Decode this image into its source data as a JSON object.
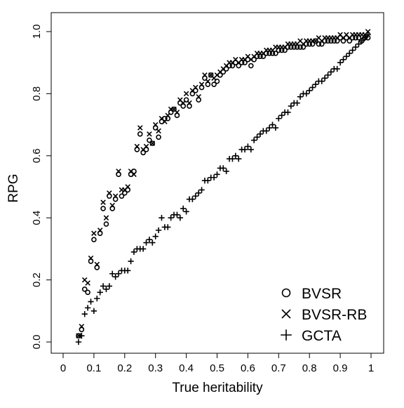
{
  "chart_data": {
    "type": "scatter",
    "title": "",
    "xlabel": "True heritability",
    "ylabel": "RPG",
    "xlim": [
      0,
      1
    ],
    "ylim": [
      0,
      1
    ],
    "x_ticks": [
      "0",
      "0.1",
      "0.2",
      "0.3",
      "0.4",
      "0.5",
      "0.6",
      "0.7",
      "0.8",
      "0.9",
      "1"
    ],
    "y_ticks": [
      "0.0",
      "0.2",
      "0.4",
      "0.6",
      "0.8",
      "1.0"
    ],
    "grid": false,
    "legend_position": "bottom-right",
    "series": [
      {
        "name": "BVSR",
        "marker": "circle",
        "x": [
          0.05,
          0.06,
          0.07,
          0.08,
          0.09,
          0.1,
          0.11,
          0.12,
          0.13,
          0.14,
          0.15,
          0.16,
          0.17,
          0.18,
          0.19,
          0.2,
          0.21,
          0.22,
          0.23,
          0.24,
          0.25,
          0.26,
          0.27,
          0.28,
          0.29,
          0.3,
          0.31,
          0.32,
          0.33,
          0.34,
          0.35,
          0.36,
          0.37,
          0.38,
          0.39,
          0.4,
          0.41,
          0.42,
          0.43,
          0.44,
          0.45,
          0.46,
          0.47,
          0.48,
          0.49,
          0.5,
          0.51,
          0.52,
          0.53,
          0.54,
          0.55,
          0.56,
          0.57,
          0.58,
          0.59,
          0.6,
          0.61,
          0.62,
          0.63,
          0.64,
          0.65,
          0.66,
          0.67,
          0.68,
          0.69,
          0.7,
          0.71,
          0.72,
          0.73,
          0.74,
          0.75,
          0.76,
          0.77,
          0.78,
          0.79,
          0.8,
          0.81,
          0.82,
          0.83,
          0.84,
          0.85,
          0.86,
          0.87,
          0.88,
          0.89,
          0.9,
          0.91,
          0.92,
          0.93,
          0.94,
          0.95,
          0.96,
          0.97,
          0.98,
          0.99
        ],
        "y": [
          0.02,
          0.04,
          0.17,
          0.16,
          0.26,
          0.33,
          0.24,
          0.35,
          0.43,
          0.38,
          0.47,
          0.43,
          0.46,
          0.54,
          0.47,
          0.48,
          0.49,
          0.54,
          0.55,
          0.62,
          0.67,
          0.61,
          0.62,
          0.65,
          0.64,
          0.69,
          0.66,
          0.71,
          0.72,
          0.72,
          0.74,
          0.75,
          0.73,
          0.77,
          0.76,
          0.78,
          0.76,
          0.8,
          0.81,
          0.78,
          0.82,
          0.85,
          0.83,
          0.86,
          0.83,
          0.84,
          0.86,
          0.87,
          0.88,
          0.89,
          0.89,
          0.9,
          0.89,
          0.9,
          0.9,
          0.91,
          0.89,
          0.91,
          0.92,
          0.92,
          0.92,
          0.93,
          0.93,
          0.93,
          0.93,
          0.94,
          0.94,
          0.94,
          0.95,
          0.95,
          0.95,
          0.95,
          0.95,
          0.95,
          0.96,
          0.96,
          0.96,
          0.97,
          0.96,
          0.96,
          0.97,
          0.97,
          0.97,
          0.97,
          0.97,
          0.98,
          0.97,
          0.98,
          0.97,
          0.98,
          0.98,
          0.98,
          0.97,
          0.98,
          0.98
        ]
      },
      {
        "name": "BVSR-RB",
        "marker": "x",
        "x": [
          0.05,
          0.06,
          0.07,
          0.08,
          0.09,
          0.1,
          0.11,
          0.12,
          0.13,
          0.14,
          0.15,
          0.16,
          0.17,
          0.18,
          0.19,
          0.2,
          0.21,
          0.22,
          0.23,
          0.24,
          0.25,
          0.26,
          0.27,
          0.28,
          0.29,
          0.3,
          0.31,
          0.32,
          0.33,
          0.34,
          0.35,
          0.36,
          0.37,
          0.38,
          0.39,
          0.4,
          0.41,
          0.42,
          0.43,
          0.44,
          0.45,
          0.46,
          0.47,
          0.48,
          0.49,
          0.5,
          0.51,
          0.52,
          0.53,
          0.54,
          0.55,
          0.56,
          0.57,
          0.58,
          0.59,
          0.6,
          0.61,
          0.62,
          0.63,
          0.64,
          0.65,
          0.66,
          0.67,
          0.68,
          0.69,
          0.7,
          0.71,
          0.72,
          0.73,
          0.74,
          0.75,
          0.76,
          0.77,
          0.78,
          0.79,
          0.8,
          0.81,
          0.82,
          0.83,
          0.84,
          0.85,
          0.86,
          0.87,
          0.88,
          0.89,
          0.9,
          0.91,
          0.92,
          0.93,
          0.94,
          0.95,
          0.96,
          0.97,
          0.98,
          0.99
        ],
        "y": [
          0.02,
          0.05,
          0.2,
          0.19,
          0.27,
          0.35,
          0.25,
          0.36,
          0.45,
          0.4,
          0.48,
          0.44,
          0.47,
          0.55,
          0.49,
          0.49,
          0.5,
          0.55,
          0.54,
          0.63,
          0.69,
          0.62,
          0.63,
          0.67,
          0.64,
          0.7,
          0.68,
          0.72,
          0.71,
          0.73,
          0.75,
          0.75,
          0.74,
          0.78,
          0.77,
          0.8,
          0.77,
          0.81,
          0.82,
          0.79,
          0.83,
          0.86,
          0.84,
          0.86,
          0.85,
          0.86,
          0.87,
          0.88,
          0.89,
          0.9,
          0.9,
          0.91,
          0.9,
          0.91,
          0.91,
          0.92,
          0.91,
          0.92,
          0.93,
          0.93,
          0.93,
          0.94,
          0.94,
          0.94,
          0.95,
          0.95,
          0.95,
          0.95,
          0.96,
          0.96,
          0.96,
          0.96,
          0.97,
          0.96,
          0.97,
          0.97,
          0.97,
          0.97,
          0.98,
          0.97,
          0.98,
          0.98,
          0.98,
          0.98,
          0.98,
          0.99,
          0.98,
          0.99,
          0.98,
          0.99,
          0.99,
          0.99,
          0.99,
          0.99,
          1.0
        ]
      },
      {
        "name": "GCTA",
        "marker": "plus",
        "x": [
          0.05,
          0.06,
          0.07,
          0.08,
          0.09,
          0.1,
          0.11,
          0.12,
          0.13,
          0.14,
          0.15,
          0.16,
          0.17,
          0.18,
          0.19,
          0.2,
          0.21,
          0.22,
          0.23,
          0.24,
          0.25,
          0.26,
          0.27,
          0.28,
          0.29,
          0.3,
          0.31,
          0.32,
          0.33,
          0.34,
          0.35,
          0.36,
          0.37,
          0.38,
          0.39,
          0.4,
          0.41,
          0.42,
          0.43,
          0.44,
          0.45,
          0.46,
          0.47,
          0.48,
          0.49,
          0.5,
          0.51,
          0.52,
          0.53,
          0.54,
          0.55,
          0.56,
          0.57,
          0.58,
          0.59,
          0.6,
          0.61,
          0.62,
          0.63,
          0.64,
          0.65,
          0.66,
          0.67,
          0.68,
          0.69,
          0.7,
          0.71,
          0.72,
          0.73,
          0.74,
          0.75,
          0.76,
          0.77,
          0.78,
          0.79,
          0.8,
          0.81,
          0.82,
          0.83,
          0.84,
          0.85,
          0.86,
          0.87,
          0.88,
          0.89,
          0.9,
          0.91,
          0.92,
          0.93,
          0.94,
          0.95,
          0.96,
          0.97,
          0.98,
          0.99
        ],
        "y": [
          0.0,
          0.02,
          0.09,
          0.11,
          0.13,
          0.1,
          0.14,
          0.16,
          0.18,
          0.17,
          0.18,
          0.22,
          0.21,
          0.22,
          0.23,
          0.23,
          0.23,
          0.26,
          0.29,
          0.3,
          0.3,
          0.3,
          0.32,
          0.33,
          0.32,
          0.34,
          0.36,
          0.4,
          0.37,
          0.37,
          0.4,
          0.41,
          0.41,
          0.4,
          0.43,
          0.42,
          0.46,
          0.46,
          0.47,
          0.48,
          0.49,
          0.52,
          0.52,
          0.53,
          0.53,
          0.54,
          0.56,
          0.56,
          0.55,
          0.59,
          0.59,
          0.6,
          0.59,
          0.62,
          0.62,
          0.63,
          0.62,
          0.65,
          0.66,
          0.67,
          0.68,
          0.68,
          0.69,
          0.7,
          0.69,
          0.72,
          0.73,
          0.74,
          0.74,
          0.76,
          0.77,
          0.77,
          0.79,
          0.8,
          0.8,
          0.81,
          0.82,
          0.83,
          0.84,
          0.84,
          0.85,
          0.86,
          0.87,
          0.88,
          0.88,
          0.9,
          0.91,
          0.92,
          0.93,
          0.94,
          0.95,
          0.96,
          0.97,
          0.98,
          0.99
        ]
      }
    ]
  }
}
